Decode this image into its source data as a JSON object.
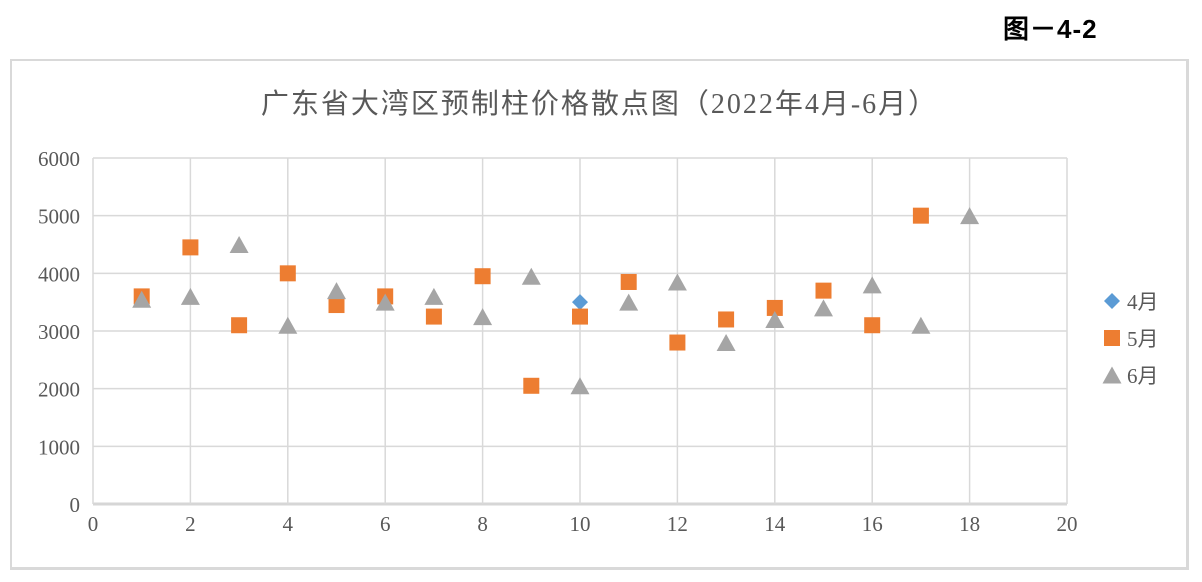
{
  "figure_label": "图－4-2",
  "colors": {
    "grid": "#D9D9D9",
    "axis_line": "#D6D6D6",
    "axis_text": "#595959",
    "title_text": "#595959",
    "figure_label_text": "#000000",
    "chart_border": "#D9D9D9",
    "series_blue": "#5B9BD5",
    "series_orange": "#ED7D31",
    "series_gray": "#A5A5A5"
  },
  "chart_data": {
    "type": "scatter",
    "title": "广东省大湾区预制柱价格散点图（2022年4月-6月）",
    "xlabel": "",
    "ylabel": "",
    "xlim": [
      0,
      20
    ],
    "ylim": [
      0,
      6000
    ],
    "x_ticks": [
      0,
      2,
      4,
      6,
      8,
      10,
      12,
      14,
      16,
      18,
      20
    ],
    "y_ticks": [
      0,
      1000,
      2000,
      3000,
      4000,
      5000,
      6000
    ],
    "grid": true,
    "legend_position": "right",
    "series": [
      {
        "name": "4月",
        "key": "april",
        "marker": "diamond",
        "color": "#5B9BD5",
        "points": [
          [
            10,
            3500
          ]
        ]
      },
      {
        "name": "5月",
        "key": "may",
        "marker": "square",
        "color": "#ED7D31",
        "points": [
          [
            1,
            3600
          ],
          [
            2,
            4450
          ],
          [
            3,
            3100
          ],
          [
            4,
            4000
          ],
          [
            5,
            3450
          ],
          [
            6,
            3600
          ],
          [
            7,
            3250
          ],
          [
            8,
            3950
          ],
          [
            9,
            2050
          ],
          [
            10,
            3250
          ],
          [
            11,
            3850
          ],
          [
            12,
            2800
          ],
          [
            13,
            3200
          ],
          [
            14,
            3400
          ],
          [
            15,
            3700
          ],
          [
            16,
            3100
          ],
          [
            17,
            5000
          ]
        ]
      },
      {
        "name": "6月",
        "key": "june",
        "marker": "triangle",
        "color": "#A5A5A5",
        "points": [
          [
            1,
            3550
          ],
          [
            2,
            3600
          ],
          [
            3,
            4500
          ],
          [
            4,
            3100
          ],
          [
            5,
            3700
          ],
          [
            6,
            3500
          ],
          [
            7,
            3600
          ],
          [
            8,
            3250
          ],
          [
            9,
            3950
          ],
          [
            10,
            2050
          ],
          [
            11,
            3500
          ],
          [
            12,
            3850
          ],
          [
            13,
            2800
          ],
          [
            14,
            3200
          ],
          [
            15,
            3400
          ],
          [
            16,
            3800
          ],
          [
            17,
            3100
          ],
          [
            18,
            5000
          ]
        ]
      }
    ]
  }
}
